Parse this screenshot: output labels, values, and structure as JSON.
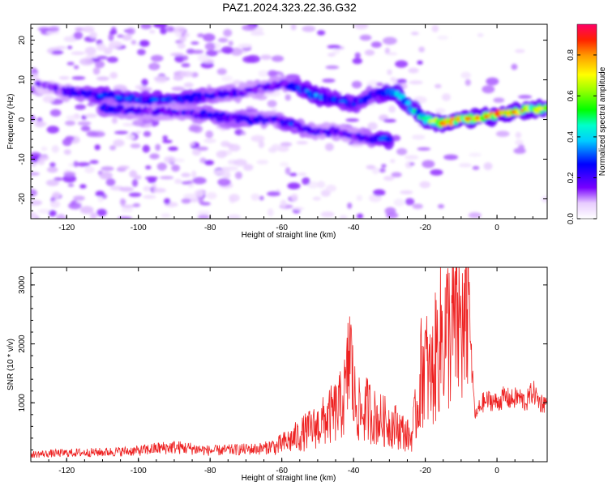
{
  "title": "PAZ1.2024.323.22.36.G32",
  "chart_data": [
    {
      "type": "heatmap",
      "xlabel": "Height of straight line (km)",
      "ylabel": "Frequency (Hz)",
      "xlim": [
        -130,
        14
      ],
      "ylim": [
        -25,
        24
      ],
      "xticks": [
        -120,
        -100,
        -80,
        -60,
        -40,
        -20,
        0
      ],
      "yticks": [
        -20,
        -10,
        0,
        10,
        20
      ],
      "colorbar": {
        "label": "Normalized spectral amplitude",
        "range": [
          0.0,
          0.95
        ],
        "ticks": [
          0.0,
          0.2,
          0.4,
          0.6,
          0.8
        ]
      },
      "ridges": [
        {
          "name": "upper",
          "x": [
            -128,
            -120,
            -110,
            -100,
            -90,
            -80,
            -70,
            -60,
            -55,
            -50,
            -45,
            -40,
            -35,
            -30,
            -27,
            -24,
            -20,
            -15,
            -10,
            -5,
            0,
            5,
            10,
            14
          ],
          "y": [
            9,
            7,
            6,
            5,
            5,
            6,
            7,
            9,
            8,
            6,
            5,
            4,
            6,
            7,
            6,
            3,
            0,
            -1,
            0,
            0.5,
            1,
            2,
            2.5,
            3
          ],
          "amplitude": [
            0.15,
            0.2,
            0.3,
            0.3,
            0.3,
            0.25,
            0.2,
            0.2,
            0.3,
            0.35,
            0.3,
            0.3,
            0.25,
            0.35,
            0.4,
            0.45,
            0.5,
            0.8,
            0.75,
            0.8,
            0.85,
            0.8,
            0.7,
            0.6
          ]
        },
        {
          "name": "lower",
          "x": [
            -110,
            -100,
            -90,
            -80,
            -70,
            -62,
            -58,
            -55,
            -50,
            -45,
            -40,
            -35,
            -30
          ],
          "y": [
            3,
            2,
            2,
            1,
            0,
            0,
            -1,
            -2,
            -3,
            -3,
            -4,
            -5,
            -5
          ],
          "amplitude": [
            0.25,
            0.2,
            0.2,
            0.25,
            0.25,
            0.2,
            0.3,
            0.25,
            0.2,
            0.2,
            0.2,
            0.25,
            0.35
          ]
        }
      ]
    },
    {
      "type": "line",
      "xlabel": "Height of straight line (km)",
      "ylabel": "SNR (10 * v/v)",
      "xlim": [
        -130,
        14
      ],
      "ylim": [
        0,
        3300
      ],
      "xticks": [
        -120,
        -100,
        -80,
        -60,
        -40,
        -20,
        0
      ],
      "yticks": [
        1000,
        2000,
        3000
      ],
      "color": "#ee2222",
      "series": [
        {
          "x": [
            -130,
            -120,
            -110,
            -100,
            -95,
            -90,
            -85,
            -80,
            -75,
            -70,
            -65,
            -62,
            -60,
            -58,
            -55,
            -52,
            -50,
            -48,
            -46,
            -44,
            -42,
            -41,
            -40,
            -38,
            -36,
            -34,
            -32,
            -30,
            -28,
            -26,
            -24,
            -22,
            -21,
            -20,
            -19,
            -18,
            -17,
            -16,
            -14,
            -12,
            -10,
            -9,
            -8,
            -7,
            -6,
            -5,
            -4,
            -2,
            0,
            2,
            4,
            6,
            8,
            10,
            12,
            14
          ],
          "y": [
            100,
            120,
            130,
            150,
            180,
            200,
            180,
            150,
            160,
            170,
            180,
            230,
            300,
            350,
            450,
            550,
            600,
            700,
            800,
            900,
            1200,
            2000,
            1100,
            800,
            900,
            750,
            700,
            650,
            600,
            500,
            400,
            1000,
            1600,
            1700,
            1400,
            1500,
            1800,
            2100,
            2200,
            2300,
            2350,
            2000,
            3300,
            1500,
            750,
            900,
            1000,
            1050,
            1000,
            1100,
            1050,
            1100,
            1000,
            1200,
            1000,
            1000
          ]
        }
      ]
    }
  ]
}
